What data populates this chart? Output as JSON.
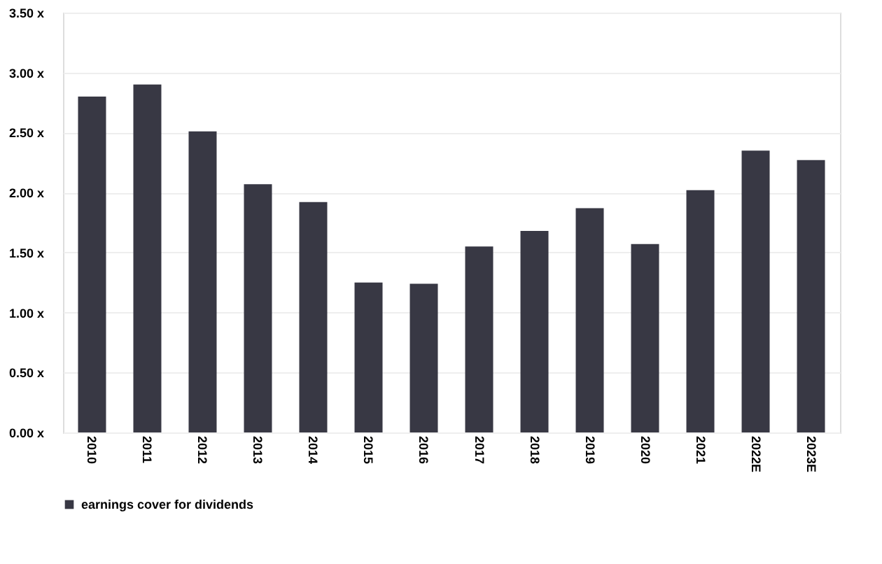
{
  "chart_data": {
    "type": "bar",
    "categories": [
      "2010",
      "2011",
      "2012",
      "2013",
      "2014",
      "2015",
      "2016",
      "2017",
      "2018",
      "2019",
      "2020",
      "2021",
      "2022E",
      "2023E"
    ],
    "series": [
      {
        "name": "earnings cover for dividends",
        "color": "#383844",
        "values": [
          2.8,
          2.9,
          2.51,
          2.07,
          1.92,
          1.25,
          1.24,
          1.55,
          1.68,
          1.87,
          1.57,
          2.02,
          2.35,
          2.27
        ]
      }
    ],
    "ylim": [
      0,
      3.5
    ],
    "yticks": [
      {
        "value": 0,
        "label": "0.00 x"
      },
      {
        "value": 0.5,
        "label": "0.50 x"
      },
      {
        "value": 1,
        "label": "1.00 x"
      },
      {
        "value": 1.5,
        "label": "1.50 x"
      },
      {
        "value": 2,
        "label": "2.00 x"
      },
      {
        "value": 2.5,
        "label": "2.50 x"
      },
      {
        "value": 3,
        "label": "3.00 x"
      },
      {
        "value": 3.5,
        "label": "3.50 x"
      }
    ],
    "grid": "y",
    "legend": "bottom"
  }
}
